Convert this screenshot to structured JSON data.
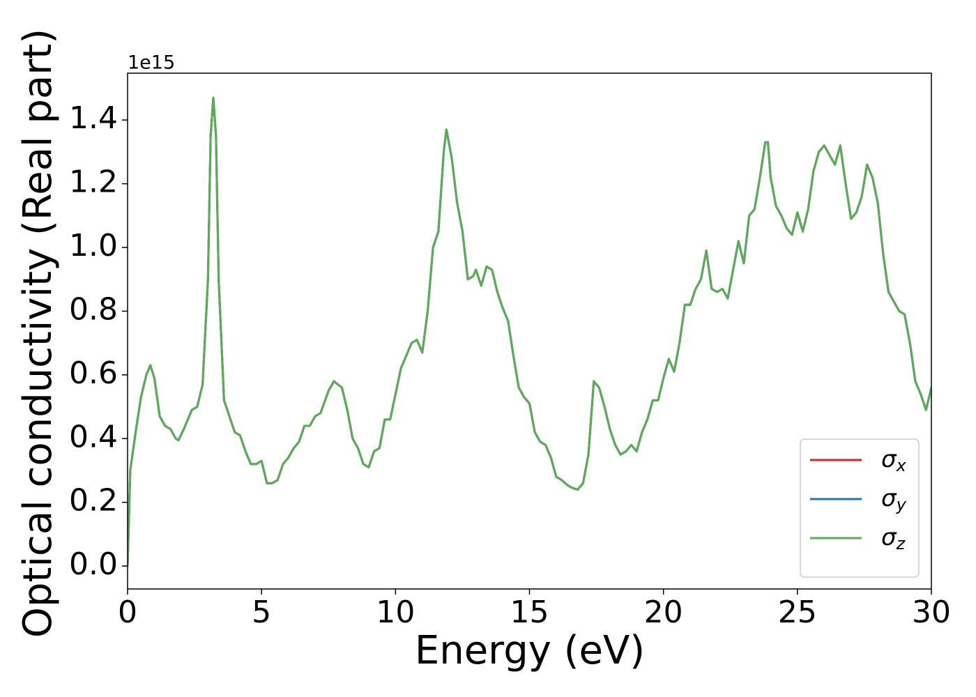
{
  "chart_data": {
    "type": "line",
    "xlabel": "Energy (eV)",
    "ylabel": "Optical conductivity (Real part)",
    "offset_text": "1e15",
    "x": [
      0,
      0.1,
      0.3,
      0.5,
      0.7,
      0.85,
      1.0,
      1.2,
      1.4,
      1.6,
      1.8,
      1.9,
      2.1,
      2.4,
      2.6,
      2.8,
      3.0,
      3.1,
      3.2,
      3.3,
      3.4,
      3.6,
      3.8,
      4.0,
      4.2,
      4.4,
      4.6,
      4.8,
      5.0,
      5.2,
      5.4,
      5.6,
      5.8,
      6.0,
      6.2,
      6.4,
      6.6,
      6.8,
      7.0,
      7.2,
      7.5,
      7.7,
      8.0,
      8.2,
      8.4,
      8.6,
      8.8,
      9.0,
      9.2,
      9.4,
      9.6,
      9.8,
      10.0,
      10.2,
      10.4,
      10.6,
      10.8,
      11.0,
      11.2,
      11.4,
      11.6,
      11.8,
      11.9,
      12.1,
      12.3,
      12.5,
      12.7,
      12.9,
      13.0,
      13.2,
      13.4,
      13.6,
      13.8,
      14.0,
      14.2,
      14.4,
      14.6,
      14.8,
      15.0,
      15.2,
      15.4,
      15.6,
      15.8,
      16.0,
      16.2,
      16.4,
      16.6,
      16.8,
      17.0,
      17.2,
      17.4,
      17.6,
      17.8,
      18.0,
      18.2,
      18.4,
      18.6,
      18.8,
      19.0,
      19.2,
      19.4,
      19.6,
      19.8,
      20.0,
      20.2,
      20.4,
      20.6,
      20.8,
      21.0,
      21.2,
      21.4,
      21.6,
      21.8,
      22.0,
      22.2,
      22.4,
      22.6,
      22.8,
      23.0,
      23.2,
      23.4,
      23.6,
      23.8,
      23.9,
      24.0,
      24.2,
      24.4,
      24.6,
      24.8,
      25.0,
      25.2,
      25.4,
      25.6,
      25.8,
      26.0,
      26.2,
      26.4,
      26.6,
      26.8,
      27.0,
      27.2,
      27.4,
      27.6,
      27.8,
      28.0,
      28.2,
      28.4,
      28.6,
      28.8,
      29.0,
      29.2,
      29.4,
      29.6,
      29.8,
      30.0
    ],
    "series": [
      {
        "name": "σx",
        "color": "#d62728",
        "values": [
          0,
          0.3,
          0.42,
          0.53,
          0.6,
          0.63,
          0.59,
          0.47,
          0.44,
          0.43,
          0.4,
          0.395,
          0.43,
          0.49,
          0.5,
          0.57,
          0.9,
          1.35,
          1.47,
          1.35,
          0.9,
          0.52,
          0.47,
          0.42,
          0.41,
          0.36,
          0.32,
          0.32,
          0.33,
          0.26,
          0.26,
          0.27,
          0.32,
          0.34,
          0.37,
          0.39,
          0.44,
          0.44,
          0.47,
          0.48,
          0.55,
          0.58,
          0.56,
          0.49,
          0.4,
          0.37,
          0.32,
          0.31,
          0.36,
          0.37,
          0.46,
          0.46,
          0.54,
          0.62,
          0.66,
          0.7,
          0.71,
          0.67,
          0.8,
          1.0,
          1.05,
          1.3,
          1.37,
          1.28,
          1.14,
          1.05,
          0.9,
          0.91,
          0.93,
          0.88,
          0.94,
          0.93,
          0.86,
          0.81,
          0.77,
          0.66,
          0.56,
          0.53,
          0.51,
          0.42,
          0.39,
          0.38,
          0.34,
          0.28,
          0.27,
          0.255,
          0.245,
          0.24,
          0.26,
          0.35,
          0.58,
          0.56,
          0.5,
          0.43,
          0.38,
          0.35,
          0.36,
          0.38,
          0.36,
          0.42,
          0.46,
          0.52,
          0.52,
          0.59,
          0.65,
          0.61,
          0.7,
          0.82,
          0.82,
          0.87,
          0.9,
          0.99,
          0.87,
          0.86,
          0.87,
          0.84,
          0.93,
          1.02,
          0.95,
          1.1,
          1.12,
          1.22,
          1.33,
          1.33,
          1.22,
          1.13,
          1.1,
          1.06,
          1.04,
          1.11,
          1.05,
          1.12,
          1.24,
          1.3,
          1.32,
          1.29,
          1.26,
          1.32,
          1.2,
          1.09,
          1.11,
          1.16,
          1.26,
          1.22,
          1.14,
          0.98,
          0.86,
          0.83,
          0.8,
          0.79,
          0.7,
          0.58,
          0.54,
          0.49,
          0.56
        ]
      },
      {
        "name": "σy",
        "color": "#1f77b4",
        "values": [
          0,
          0.3,
          0.42,
          0.53,
          0.6,
          0.63,
          0.59,
          0.47,
          0.44,
          0.43,
          0.4,
          0.395,
          0.43,
          0.49,
          0.5,
          0.57,
          0.9,
          1.35,
          1.47,
          1.35,
          0.9,
          0.52,
          0.47,
          0.42,
          0.41,
          0.36,
          0.32,
          0.32,
          0.33,
          0.26,
          0.26,
          0.27,
          0.32,
          0.34,
          0.37,
          0.39,
          0.44,
          0.44,
          0.47,
          0.48,
          0.55,
          0.58,
          0.56,
          0.49,
          0.4,
          0.37,
          0.32,
          0.31,
          0.36,
          0.37,
          0.46,
          0.46,
          0.54,
          0.62,
          0.66,
          0.7,
          0.71,
          0.67,
          0.8,
          1.0,
          1.05,
          1.3,
          1.37,
          1.28,
          1.14,
          1.05,
          0.9,
          0.91,
          0.93,
          0.88,
          0.94,
          0.93,
          0.86,
          0.81,
          0.77,
          0.66,
          0.56,
          0.53,
          0.51,
          0.42,
          0.39,
          0.38,
          0.34,
          0.28,
          0.27,
          0.255,
          0.245,
          0.24,
          0.26,
          0.35,
          0.58,
          0.56,
          0.5,
          0.43,
          0.38,
          0.35,
          0.36,
          0.38,
          0.36,
          0.42,
          0.46,
          0.52,
          0.52,
          0.59,
          0.65,
          0.61,
          0.7,
          0.82,
          0.82,
          0.87,
          0.9,
          0.99,
          0.87,
          0.86,
          0.87,
          0.84,
          0.93,
          1.02,
          0.95,
          1.1,
          1.12,
          1.22,
          1.33,
          1.33,
          1.22,
          1.13,
          1.1,
          1.06,
          1.04,
          1.11,
          1.05,
          1.12,
          1.24,
          1.3,
          1.32,
          1.29,
          1.26,
          1.32,
          1.2,
          1.09,
          1.11,
          1.16,
          1.26,
          1.22,
          1.14,
          0.98,
          0.86,
          0.83,
          0.8,
          0.79,
          0.7,
          0.58,
          0.54,
          0.49,
          0.56
        ]
      },
      {
        "name": "σz",
        "color": "#5aad55",
        "values": [
          0,
          0.3,
          0.42,
          0.53,
          0.6,
          0.63,
          0.59,
          0.47,
          0.44,
          0.43,
          0.4,
          0.395,
          0.43,
          0.49,
          0.5,
          0.57,
          0.9,
          1.35,
          1.47,
          1.35,
          0.9,
          0.52,
          0.47,
          0.42,
          0.41,
          0.36,
          0.32,
          0.32,
          0.33,
          0.26,
          0.26,
          0.27,
          0.32,
          0.34,
          0.37,
          0.39,
          0.44,
          0.44,
          0.47,
          0.48,
          0.55,
          0.58,
          0.56,
          0.49,
          0.4,
          0.37,
          0.32,
          0.31,
          0.36,
          0.37,
          0.46,
          0.46,
          0.54,
          0.62,
          0.66,
          0.7,
          0.71,
          0.67,
          0.8,
          1.0,
          1.05,
          1.3,
          1.37,
          1.28,
          1.14,
          1.05,
          0.9,
          0.91,
          0.93,
          0.88,
          0.94,
          0.93,
          0.86,
          0.81,
          0.77,
          0.66,
          0.56,
          0.53,
          0.51,
          0.42,
          0.39,
          0.38,
          0.34,
          0.28,
          0.27,
          0.255,
          0.245,
          0.24,
          0.26,
          0.35,
          0.58,
          0.56,
          0.5,
          0.43,
          0.38,
          0.35,
          0.36,
          0.38,
          0.36,
          0.42,
          0.46,
          0.52,
          0.52,
          0.59,
          0.65,
          0.61,
          0.7,
          0.82,
          0.82,
          0.87,
          0.9,
          0.99,
          0.87,
          0.86,
          0.87,
          0.84,
          0.93,
          1.02,
          0.95,
          1.1,
          1.12,
          1.22,
          1.33,
          1.33,
          1.22,
          1.13,
          1.1,
          1.06,
          1.04,
          1.11,
          1.05,
          1.12,
          1.24,
          1.3,
          1.32,
          1.29,
          1.26,
          1.32,
          1.2,
          1.09,
          1.11,
          1.16,
          1.26,
          1.22,
          1.14,
          0.98,
          0.86,
          0.83,
          0.8,
          0.79,
          0.7,
          0.58,
          0.54,
          0.49,
          0.56
        ]
      }
    ],
    "xlim": [
      0,
      30
    ],
    "xticks": [
      0,
      5,
      10,
      15,
      20,
      25,
      30
    ],
    "ylim": [
      -0.072,
      1.547
    ],
    "yticks": [
      {
        "value": 0,
        "label": "0.0"
      },
      0.2,
      0.4,
      0.6,
      0.8,
      {
        "value": 1,
        "label": "1.0"
      },
      1.2,
      1.4
    ],
    "legend": "lower right",
    "grid": false
  }
}
